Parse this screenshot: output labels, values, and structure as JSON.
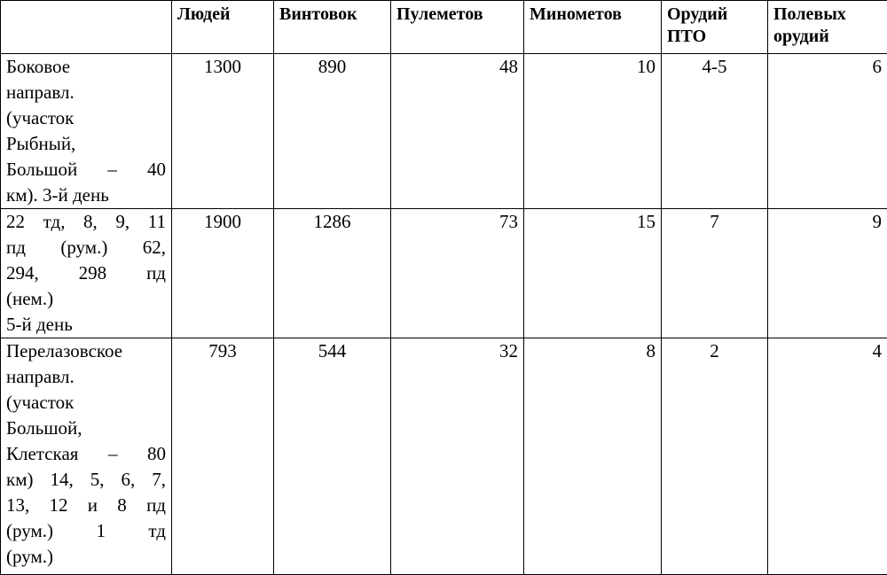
{
  "table": {
    "header": [
      [
        "Людей"
      ],
      [
        "Винтовок"
      ],
      [
        "Пулеметов"
      ],
      [
        "Минометов"
      ],
      [
        "Орудий",
        "ПТО"
      ],
      [
        "Полевых",
        "орудий"
      ]
    ],
    "rows": [
      {
        "label": [
          "Боковое",
          "направл.",
          "(участок",
          "Рыбный,",
          "Большой – 40",
          "км). 3-й день"
        ],
        "values": [
          1300,
          890,
          48,
          10,
          "4-5",
          6
        ]
      },
      {
        "label": [
          "22 тд, 8, 9, 11",
          "пд (рум.) 62,",
          "294, 298 пд",
          "(нем.)",
          "5-й день"
        ],
        "values": [
          1900,
          1286,
          73,
          15,
          7,
          9
        ]
      },
      {
        "label": [
          "Перелазовское",
          "направл.",
          "(участок",
          "Большой,",
          "Клетская – 80",
          "км) 14, 5, 6, 7,",
          "13, 12 и 8 пд",
          "(рум.) 1 тд",
          "(рум.)"
        ],
        "values": [
          793,
          544,
          32,
          8,
          2,
          4
        ]
      }
    ]
  }
}
